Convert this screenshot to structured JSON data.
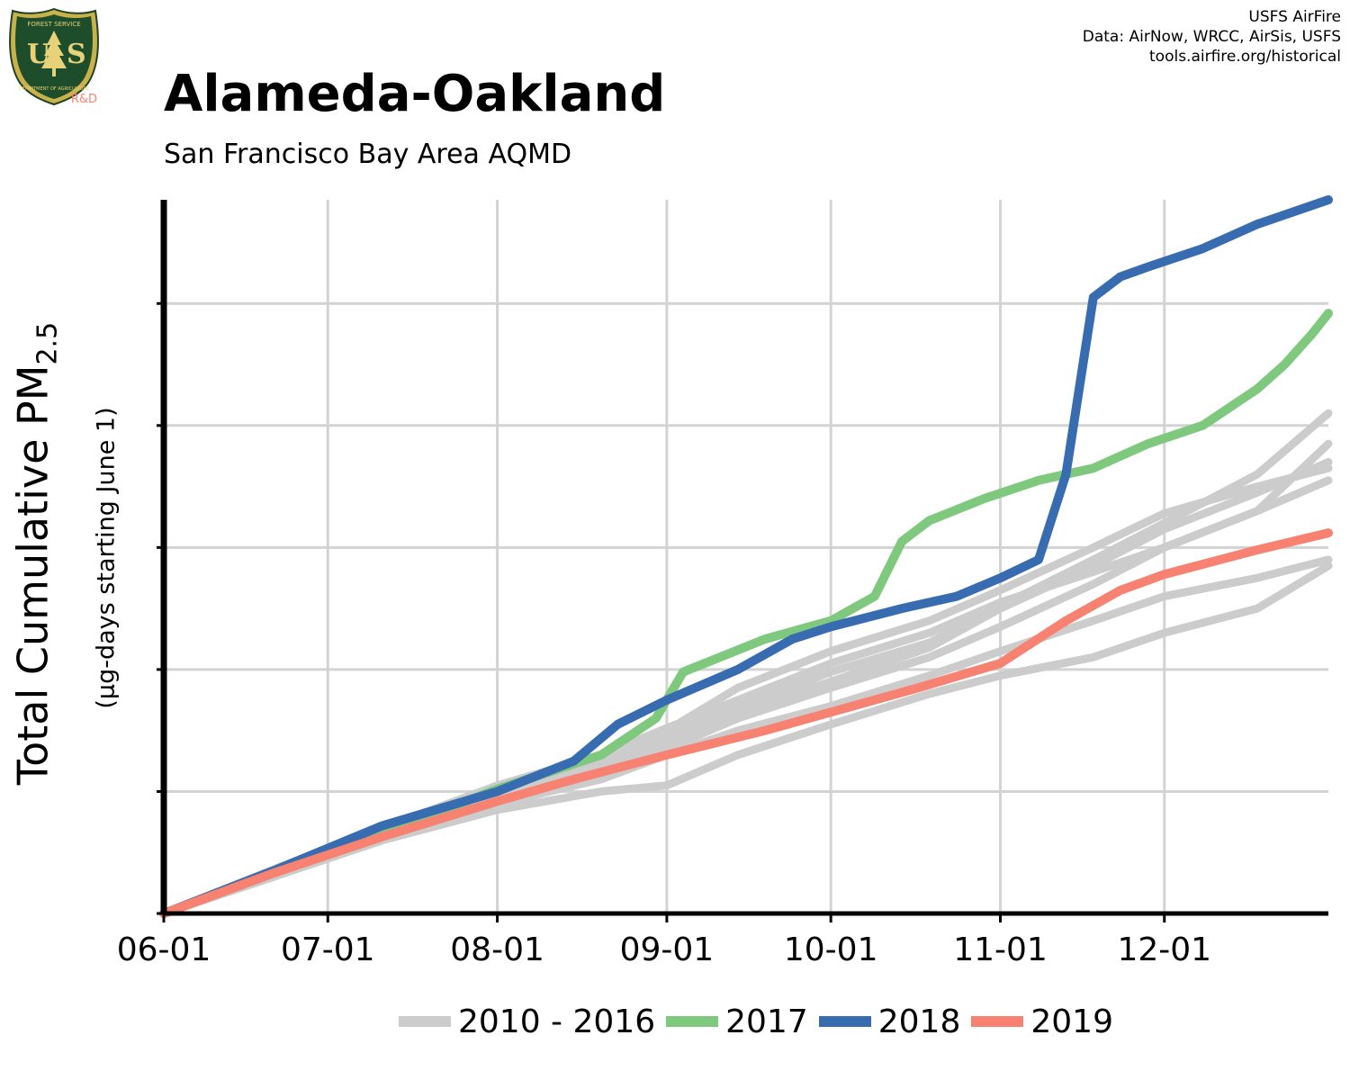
{
  "header": {
    "title": "Alameda-Oakland",
    "subtitle": "San Francisco Bay Area AQMD",
    "credits": [
      "USFS AirFire",
      "Data: AirNow, WRCC, AirSis, USFS",
      "tools.airfire.org/historical"
    ],
    "logo": {
      "top_text": "FOREST SERVICE",
      "bottom_text": "DEPARTMENT OF AGRICULTURE",
      "tag": "R&D"
    }
  },
  "axes": {
    "ylabel": "Total Cumulative PM",
    "ylabel_subscript": "2.5",
    "ylabel_units": "(µg-days starting June 1)"
  },
  "legend": [
    {
      "label": "2010 - 2016",
      "color": "#cccccc"
    },
    {
      "label": "2017",
      "color": "#7fc97f"
    },
    {
      "label": "2018",
      "color": "#386cb0"
    },
    {
      "label": "2019",
      "color": "#f88272"
    }
  ],
  "chart_data": {
    "type": "line",
    "xlabel": "",
    "ylabel": "Total Cumulative PM2.5 (µg-days starting June 1)",
    "x_ticks": [
      "06-01",
      "07-01",
      "08-01",
      "09-01",
      "10-01",
      "11-01",
      "12-01"
    ],
    "x_tick_days": [
      0,
      30,
      61,
      92,
      122,
      153,
      183
    ],
    "xlim": [
      0,
      213
    ],
    "y_ticks": [
      0,
      1,
      2,
      3,
      4,
      5
    ],
    "ylim": [
      0,
      5.85
    ],
    "y_tick_labels_shown": false,
    "grid": true,
    "legend_position": "bottom",
    "series": [
      {
        "name": "2010 - 2016",
        "color": "#cccccc",
        "x": [
          0,
          20,
          40,
          61,
          80,
          92,
          105,
          122,
          140,
          153,
          170,
          183,
          200,
          213
        ],
        "y": [
          0,
          0.32,
          0.63,
          0.95,
          1.18,
          1.35,
          1.6,
          1.85,
          2.1,
          2.35,
          2.7,
          3.0,
          3.3,
          3.55
        ]
      },
      {
        "name": "2010 - 2016",
        "color": "#cccccc",
        "x": [
          0,
          20,
          40,
          61,
          80,
          92,
          105,
          122,
          140,
          153,
          170,
          183,
          200,
          213
        ],
        "y": [
          0,
          0.35,
          0.68,
          1.02,
          1.25,
          1.45,
          1.68,
          1.98,
          2.22,
          2.52,
          2.9,
          3.2,
          3.6,
          4.1
        ]
      },
      {
        "name": "2010 - 2016",
        "color": "#cccccc",
        "x": [
          0,
          20,
          40,
          61,
          80,
          92,
          105,
          122,
          140,
          153,
          170,
          183,
          200,
          213
        ],
        "y": [
          0,
          0.34,
          0.66,
          1.0,
          1.22,
          1.42,
          1.65,
          1.9,
          2.18,
          2.5,
          2.85,
          3.15,
          3.45,
          3.7
        ]
      },
      {
        "name": "2010 - 2016",
        "color": "#cccccc",
        "x": [
          0,
          20,
          40,
          61,
          80,
          92,
          105,
          122,
          140,
          153,
          170,
          183,
          200,
          213
        ],
        "y": [
          0,
          0.33,
          0.64,
          0.98,
          1.2,
          1.5,
          1.85,
          2.15,
          2.4,
          2.65,
          3.0,
          3.28,
          3.5,
          3.65
        ]
      },
      {
        "name": "2010 - 2016",
        "color": "#cccccc",
        "x": [
          0,
          20,
          40,
          61,
          80,
          92,
          105,
          122,
          140,
          153,
          170,
          183,
          200,
          213
        ],
        "y": [
          0,
          0.36,
          0.7,
          1.05,
          1.3,
          1.52,
          1.75,
          2.05,
          2.3,
          2.55,
          2.8,
          3.0,
          3.3,
          3.85
        ]
      },
      {
        "name": "2010 - 2016",
        "color": "#cccccc",
        "x": [
          0,
          20,
          40,
          61,
          80,
          92,
          105,
          122,
          140,
          153,
          170,
          183,
          200,
          213
        ],
        "y": [
          0,
          0.3,
          0.6,
          0.85,
          1.0,
          1.05,
          1.3,
          1.55,
          1.8,
          1.95,
          2.1,
          2.3,
          2.5,
          2.85
        ]
      },
      {
        "name": "2010 - 2016",
        "color": "#cccccc",
        "x": [
          0,
          20,
          40,
          61,
          80,
          92,
          105,
          122,
          140,
          153,
          170,
          183,
          200,
          213
        ],
        "y": [
          0,
          0.3,
          0.62,
          0.9,
          1.1,
          1.3,
          1.5,
          1.7,
          1.95,
          2.15,
          2.4,
          2.6,
          2.75,
          2.9
        ]
      },
      {
        "name": "2017",
        "color": "#7fc97f",
        "x": [
          0,
          20,
          40,
          61,
          80,
          90,
          95,
          110,
          122,
          130,
          135,
          140,
          150,
          160,
          170,
          180,
          190,
          200,
          205,
          210,
          213
        ],
        "y": [
          0,
          0.33,
          0.65,
          1.02,
          1.3,
          1.6,
          1.98,
          2.25,
          2.4,
          2.6,
          3.05,
          3.22,
          3.4,
          3.55,
          3.65,
          3.85,
          4.0,
          4.3,
          4.5,
          4.75,
          4.92
        ]
      },
      {
        "name": "2018",
        "color": "#386cb0",
        "x": [
          0,
          20,
          40,
          61,
          75,
          83,
          92,
          105,
          115,
          122,
          135,
          145,
          153,
          160,
          165,
          170,
          175,
          180,
          190,
          200,
          213
        ],
        "y": [
          0,
          0.35,
          0.72,
          1.0,
          1.25,
          1.55,
          1.75,
          2.0,
          2.25,
          2.35,
          2.5,
          2.6,
          2.75,
          2.9,
          3.6,
          5.05,
          5.22,
          5.3,
          5.45,
          5.65,
          5.85
        ]
      },
      {
        "name": "2019",
        "color": "#f88272",
        "x": [
          0,
          20,
          40,
          61,
          75,
          92,
          110,
          122,
          138,
          153,
          165,
          175,
          183,
          200,
          213
        ],
        "y": [
          0,
          0.33,
          0.63,
          0.92,
          1.1,
          1.3,
          1.5,
          1.65,
          1.85,
          2.05,
          2.4,
          2.65,
          2.78,
          2.98,
          3.12
        ]
      }
    ]
  }
}
